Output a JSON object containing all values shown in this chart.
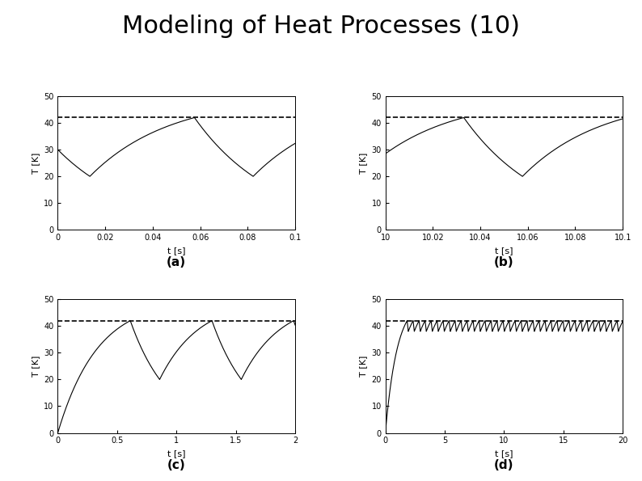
{
  "title": "Modeling of Heat Processes (10)",
  "title_fontsize": 22,
  "title_fontweight": "normal",
  "background_color": "#ffffff",
  "setpoint": 42.0,
  "ylim": [
    0,
    50
  ],
  "yticks": [
    0,
    10,
    20,
    30,
    40,
    50
  ],
  "ylabel": "T [K]",
  "xlabel": "t [s]",
  "subplot_labels": [
    "(a)",
    "(b)",
    "(c)",
    "(d)"
  ],
  "subplot_label_fontsize": 11,
  "subplot_label_fontweight": "bold",
  "line_color": "#000000",
  "line_color_gray": "#aaaaaa",
  "dashed_color": "#000000",
  "line_width": 0.8,
  "dashed_linewidth": 1.2
}
